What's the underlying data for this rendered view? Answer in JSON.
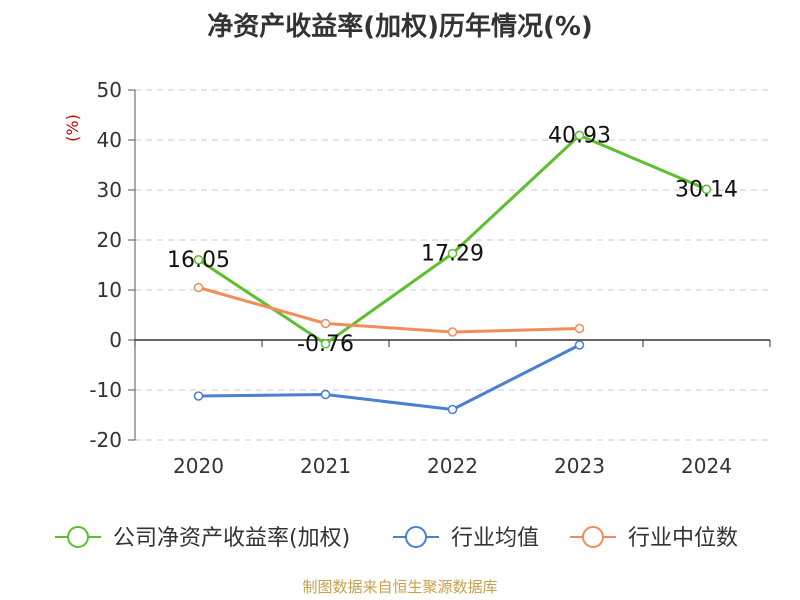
{
  "chart_data": {
    "type": "line",
    "title": "净资产收益率(加权)历年情况(%)",
    "ylabel": "(%)",
    "xlabel": "",
    "categories": [
      "2020",
      "2021",
      "2022",
      "2023",
      "2024"
    ],
    "ylim": [
      -20,
      50
    ],
    "yticks": [
      50,
      40,
      30,
      20,
      10,
      0,
      -10,
      -20
    ],
    "grid": true,
    "legend_position": "bottom",
    "series": [
      {
        "name": "公司净资产收益率(加权)",
        "color": "#5dbf2c",
        "values": [
          16.05,
          -0.76,
          17.29,
          40.93,
          30.14
        ],
        "labels": [
          "16.05",
          "-0.76",
          "17.29",
          "40.93",
          "30.14"
        ]
      },
      {
        "name": "行业均值",
        "color": "#4a7fd6",
        "values": [
          -11.2,
          -10.9,
          -13.9,
          -1.0,
          null
        ]
      },
      {
        "name": "行业中位数",
        "color": "#f28c5b",
        "values": [
          10.5,
          3.3,
          1.6,
          2.3,
          null
        ]
      }
    ]
  },
  "source_text": "制图数据来自恒生聚源数据库"
}
